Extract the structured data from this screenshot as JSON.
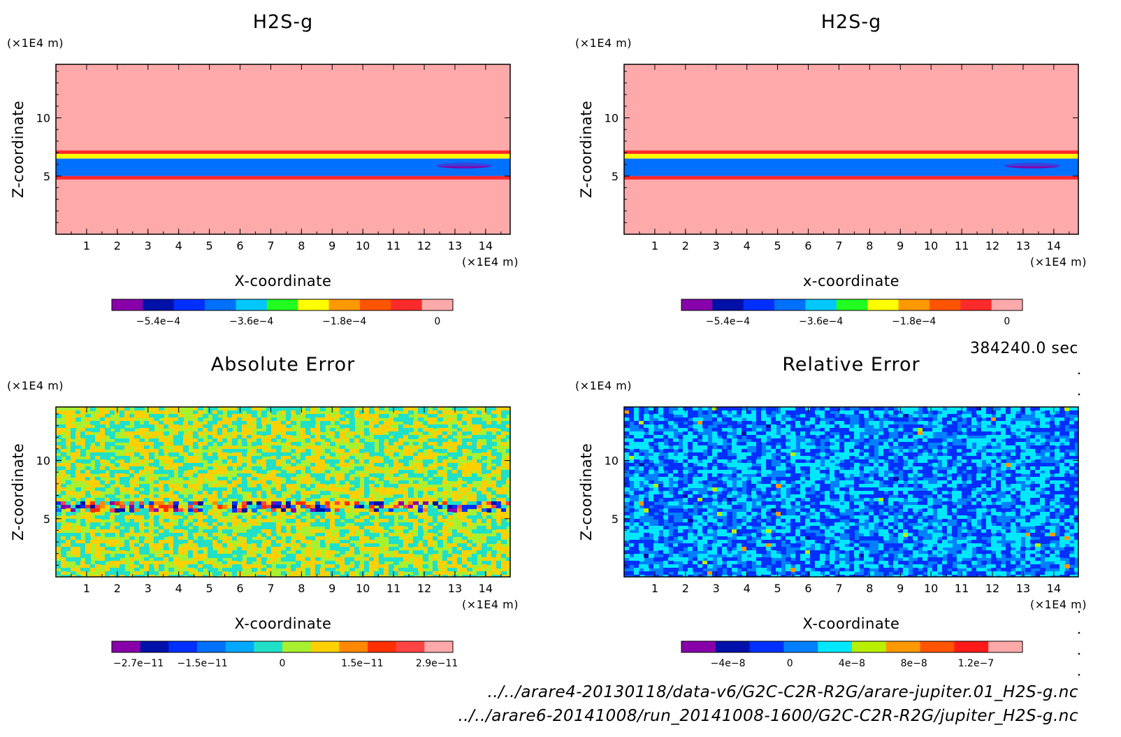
{
  "chart_data": [
    {
      "type": "heatmap",
      "title": "H2S-g",
      "xlabel": "X-coordinate",
      "ylabel": "Z-coordinate",
      "x_unit": "(×1E4 m)",
      "z_unit": "(×1E4 m)",
      "xlim": [
        0,
        14.8
      ],
      "ylim": [
        0,
        14.6
      ],
      "x_ticks": [
        1,
        2,
        3,
        4,
        5,
        6,
        7,
        8,
        9,
        10,
        11,
        12,
        13,
        14
      ],
      "y_ticks": [
        5,
        10
      ],
      "colorbar": {
        "colors": [
          "#8800aa",
          "#0010a8",
          "#0030ff",
          "#0070ff",
          "#00c8ff",
          "#20ff20",
          "#ffff00",
          "#ff9900",
          "#ff5500",
          "#ff2a2a",
          "#ffaaaa"
        ],
        "tick_labels": [
          "−5.4e−4",
          "−3.6e−4",
          "−1.8e−4",
          "0"
        ],
        "tick_values": [
          -0.00054,
          -0.00036,
          -0.00018,
          0
        ],
        "range": [
          -0.00063,
          3e-05
        ]
      },
      "field": {
        "background_level": 0,
        "bands": [
          {
            "z": [
              12.4,
              12.9
            ],
            "level": -3e-05
          },
          {
            "z": [
              10.8,
              11.2
            ],
            "level": -3e-05
          },
          {
            "z": [
              9.4,
              9.9
            ],
            "level": -3e-05
          },
          {
            "z": [
              7.8,
              8.8
            ],
            "level": -3e-05
          },
          {
            "z": [
              6.9,
              7.2
            ],
            "level": -6e-05
          },
          {
            "z": [
              6.5,
              6.9
            ],
            "level": -0.00024
          },
          {
            "z": [
              5.0,
              6.5
            ],
            "level": -0.00045
          },
          {
            "z": [
              4.7,
              5.0
            ],
            "level": -6e-05
          }
        ]
      }
    },
    {
      "type": "heatmap",
      "title": "H2S-g",
      "xlabel": "x-coordinate",
      "ylabel": "Z-coordinate",
      "x_unit": "(×1E4 m)",
      "z_unit": "(×1E4 m)",
      "xlim": [
        0,
        14.8
      ],
      "ylim": [
        0,
        14.6
      ],
      "x_ticks": [
        1,
        2,
        3,
        4,
        5,
        6,
        7,
        8,
        9,
        10,
        11,
        12,
        13,
        14
      ],
      "y_ticks": [
        5,
        10
      ],
      "colorbar": {
        "colors": [
          "#8800aa",
          "#0010a8",
          "#0030ff",
          "#0070ff",
          "#00c8ff",
          "#20ff20",
          "#ffff00",
          "#ff9900",
          "#ff5500",
          "#ff2a2a",
          "#ffaaaa"
        ],
        "tick_labels": [
          "−5.4e−4",
          "−3.6e−4",
          "−1.8e−4",
          "0"
        ],
        "tick_values": [
          -0.00054,
          -0.00036,
          -0.00018,
          0
        ],
        "range": [
          -0.00063,
          3e-05
        ]
      },
      "field": {
        "background_level": 0,
        "bands": [
          {
            "z": [
              12.4,
              12.9
            ],
            "level": -3e-05
          },
          {
            "z": [
              10.8,
              11.2
            ],
            "level": -3e-05
          },
          {
            "z": [
              9.4,
              9.9
            ],
            "level": -3e-05
          },
          {
            "z": [
              7.8,
              8.8
            ],
            "level": -3e-05
          },
          {
            "z": [
              6.9,
              7.2
            ],
            "level": -6e-05
          },
          {
            "z": [
              6.5,
              6.9
            ],
            "level": -0.00024
          },
          {
            "z": [
              5.0,
              6.5
            ],
            "level": -0.00045
          },
          {
            "z": [
              4.7,
              5.0
            ],
            "level": -6e-05
          }
        ]
      }
    },
    {
      "type": "heatmap",
      "title": "Absolute Error",
      "xlabel": "X-coordinate",
      "ylabel": "Z-coordinate",
      "x_unit": "(×1E4 m)",
      "z_unit": "(×1E4 m)",
      "xlim": [
        0,
        14.8
      ],
      "ylim": [
        0,
        14.6
      ],
      "x_ticks": [
        1,
        2,
        3,
        4,
        5,
        6,
        7,
        8,
        9,
        10,
        11,
        12,
        13,
        14
      ],
      "y_ticks": [
        5,
        10
      ],
      "colorbar": {
        "colors": [
          "#8800aa",
          "#0010a8",
          "#0030ff",
          "#0070ff",
          "#00a8ff",
          "#20e0c8",
          "#a8f030",
          "#ffd000",
          "#ff8800",
          "#ff3000",
          "#ff4444",
          "#ffaaaa"
        ],
        "tick_labels": [
          "−2.7e−11",
          "−1.5e−11",
          "0",
          "1.5e−11",
          "2.9e−11"
        ],
        "tick_values": [
          -2.7e-11,
          -1.5e-11,
          0,
          1.5e-11,
          2.9e-11
        ],
        "range": [
          -3.2e-11,
          3.2e-11
        ]
      },
      "field": {
        "noise_levels": [
          5,
          6,
          7
        ],
        "active_band_z": [
          5.6,
          6.7
        ],
        "active_levels": [
          0,
          1,
          2,
          3,
          8,
          9,
          10
        ]
      }
    },
    {
      "type": "heatmap",
      "title": "Relative Error",
      "xlabel": "X-coordinate",
      "ylabel": "Z-coordinate",
      "x_unit": "(×1E4 m)",
      "z_unit": "(×1E4 m)",
      "xlim": [
        0,
        14.8
      ],
      "ylim": [
        0,
        14.6
      ],
      "x_ticks": [
        1,
        2,
        3,
        4,
        5,
        6,
        7,
        8,
        9,
        10,
        11,
        12,
        13,
        14
      ],
      "y_ticks": [
        5,
        10
      ],
      "colorbar": {
        "colors": [
          "#8800aa",
          "#0010a8",
          "#0030ff",
          "#0080ff",
          "#00e8ff",
          "#b8f000",
          "#ff9900",
          "#ff5500",
          "#ff1a1a",
          "#ffaaaa"
        ],
        "tick_labels": [
          "−4e−8",
          "0",
          "4e−8",
          "8e−8",
          "1.2e−7"
        ],
        "tick_values": [
          -4e-08,
          0,
          4e-08,
          8e-08,
          1.2e-07
        ],
        "range": [
          -7e-08,
          1.5e-07
        ]
      },
      "field": {
        "noise_levels": [
          2,
          3,
          4
        ],
        "rare_levels": [
          1,
          5,
          6
        ]
      }
    }
  ],
  "time_label": "384240.0 sec",
  "paths": [
    "../../arare4-20130118/data-v6/G2C-C2R-R2G/arare-jupiter.01_H2S-g.nc",
    "../../arare6-20141008/run_20141008-1600/G2C-C2R-R2G/jupiter_H2S-g.nc"
  ]
}
